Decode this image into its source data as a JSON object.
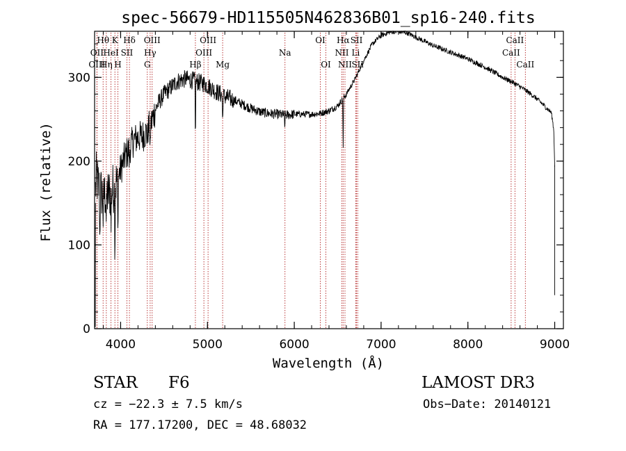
{
  "chart_data": {
    "type": "line",
    "title": "spec-56679-HD115505N462836B01_sp16-240.fits",
    "xlabel": "Wavelength (Å)",
    "ylabel": "Flux (relative)",
    "xlim": [
      3700,
      9100
    ],
    "ylim": [
      0,
      355
    ],
    "xticks": [
      4000,
      5000,
      6000,
      7000,
      8000,
      9000
    ],
    "yticks": [
      0,
      100,
      200,
      300
    ],
    "grid": false,
    "legend": "none",
    "line_color": "#000000",
    "marker_color": "#b22222",
    "spectrum_anchors": [
      [
        3700,
        150
      ],
      [
        3720,
        180
      ],
      [
        3760,
        165
      ],
      [
        3800,
        160
      ],
      [
        3850,
        160
      ],
      [
        3900,
        165
      ],
      [
        3950,
        175
      ],
      [
        4000,
        190
      ],
      [
        4050,
        205
      ],
      [
        4100,
        215
      ],
      [
        4150,
        225
      ],
      [
        4200,
        228
      ],
      [
        4250,
        230
      ],
      [
        4300,
        235
      ],
      [
        4350,
        245
      ],
      [
        4400,
        262
      ],
      [
        4450,
        272
      ],
      [
        4500,
        280
      ],
      [
        4550,
        285
      ],
      [
        4600,
        290
      ],
      [
        4650,
        295
      ],
      [
        4700,
        297
      ],
      [
        4750,
        298
      ],
      [
        4800,
        297
      ],
      [
        4850,
        296
      ],
      [
        4900,
        294
      ],
      [
        4950,
        293
      ],
      [
        5000,
        290
      ],
      [
        5050,
        287
      ],
      [
        5100,
        283
      ],
      [
        5150,
        280
      ],
      [
        5200,
        277
      ],
      [
        5300,
        273
      ],
      [
        5400,
        268
      ],
      [
        5500,
        263
      ],
      [
        5600,
        259
      ],
      [
        5700,
        257
      ],
      [
        5800,
        256
      ],
      [
        5900,
        255
      ],
      [
        6000,
        256
      ],
      [
        6100,
        256
      ],
      [
        6200,
        256
      ],
      [
        6300,
        257
      ],
      [
        6400,
        260
      ],
      [
        6500,
        266
      ],
      [
        6600,
        280
      ],
      [
        6700,
        298
      ],
      [
        6800,
        320
      ],
      [
        6900,
        340
      ],
      [
        7000,
        350
      ],
      [
        7100,
        354
      ],
      [
        7200,
        355
      ],
      [
        7300,
        353
      ],
      [
        7400,
        348
      ],
      [
        7500,
        343
      ],
      [
        7600,
        338
      ],
      [
        7700,
        334
      ],
      [
        7800,
        330
      ],
      [
        7900,
        326
      ],
      [
        8000,
        322
      ],
      [
        8100,
        317
      ],
      [
        8200,
        312
      ],
      [
        8300,
        306
      ],
      [
        8400,
        300
      ],
      [
        8500,
        295
      ],
      [
        8600,
        289
      ],
      [
        8700,
        282
      ],
      [
        8800,
        274
      ],
      [
        8900,
        264
      ],
      [
        8960,
        258
      ],
      [
        8980,
        245
      ],
      [
        8990,
        235
      ],
      [
        9000,
        195
      ]
    ],
    "absorption_dips": [
      [
        3760,
        60
      ],
      [
        3800,
        40
      ],
      [
        3835,
        40
      ],
      [
        3889,
        45
      ],
      [
        3934,
        75
      ],
      [
        3968,
        70
      ],
      [
        4101,
        25
      ],
      [
        4307,
        15
      ],
      [
        4340,
        40
      ],
      [
        4861,
        70
      ],
      [
        5175,
        35
      ],
      [
        5890,
        15
      ],
      [
        6563,
        60
      ]
    ],
    "line_markers": [
      {
        "label": "Hθ",
        "x": 3798,
        "row": 1
      },
      {
        "label": "OII",
        "x": 3727,
        "row": 2
      },
      {
        "label": "OIII",
        "x": 3727,
        "row": 3
      },
      {
        "label": "K",
        "x": 3934,
        "row": 1
      },
      {
        "label": "HeI",
        "x": 3889,
        "row": 2
      },
      {
        "label": "Hη",
        "x": 3835,
        "row": 3
      },
      {
        "label": "Hδ",
        "x": 4101,
        "row": 1
      },
      {
        "label": "SII",
        "x": 4072,
        "row": 2
      },
      {
        "label": "H",
        "x": 3968,
        "row": 3
      },
      {
        "label": "OIII",
        "x": 4363,
        "row": 1
      },
      {
        "label": "Hγ",
        "x": 4340,
        "row": 2
      },
      {
        "label": "G",
        "x": 4307,
        "row": 3
      },
      {
        "label": "OIII",
        "x": 5007,
        "row": 1
      },
      {
        "label": "OIII",
        "x": 4959,
        "row": 2
      },
      {
        "label": "Hβ",
        "x": 4861,
        "row": 3
      },
      {
        "label": "Mg",
        "x": 5175,
        "row": 3
      },
      {
        "label": "Na",
        "x": 5893,
        "row": 2
      },
      {
        "label": "OI",
        "x": 6300,
        "row": 1
      },
      {
        "label": "OI",
        "x": 6364,
        "row": 3
      },
      {
        "label": "Hα",
        "x": 6563,
        "row": 1
      },
      {
        "label": "NII",
        "x": 6548,
        "row": 2
      },
      {
        "label": "NII",
        "x": 6584,
        "row": 3
      },
      {
        "label": "SII",
        "x": 6717,
        "row": 1
      },
      {
        "label": "Li",
        "x": 6708,
        "row": 2
      },
      {
        "label": "SII",
        "x": 6731,
        "row": 3
      },
      {
        "label": "CaII",
        "x": 8542,
        "row": 1
      },
      {
        "label": "CaII",
        "x": 8498,
        "row": 2
      },
      {
        "label": "CaII",
        "x": 8662,
        "row": 3
      }
    ]
  },
  "info": {
    "object_class": "STAR",
    "subclass": "F6",
    "survey": "LAMOST DR3",
    "redshift": "cz = −22.3 ± 7.5 km/s",
    "obs_date": "Obs−Date: 20140121",
    "coords": "RA = 177.17200, DEC =  48.68032"
  }
}
